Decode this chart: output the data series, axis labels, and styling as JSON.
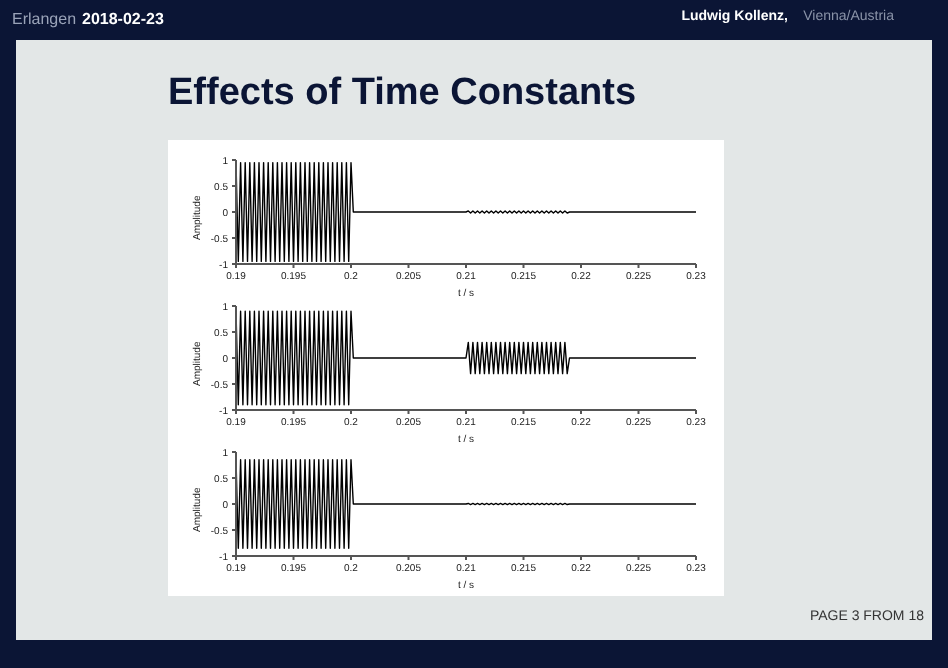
{
  "chart_data": [
    {
      "type": "line",
      "title": "Effects of Time Constants",
      "ylabel": "Amplitude",
      "xlabel": "t / s",
      "annotations": [
        "Erlangen",
        "2018-02-23",
        "Ludwig Kollenz,",
        "Vienna/Austria",
        "PAGE 3 FROM 18"
      ],
      "xlim": [
        0.19,
        0.23
      ],
      "xticks": [
        0.19,
        0.195,
        0.2,
        0.205,
        0.21,
        0.215,
        0.22,
        0.225,
        0.23
      ],
      "ylim": [
        -1,
        1
      ],
      "yticks": [
        -1,
        -0.5,
        0,
        0.5,
        1
      ],
      "series": [
        {
          "color": "#000000",
          "x": [
            0.19,
            0.1902,
            0.1904,
            0.1906,
            0.1908,
            0.191,
            0.1912,
            0.1914,
            0.1916,
            0.1918,
            0.192,
            0.1922,
            0.1924,
            0.1926,
            0.1928,
            0.193,
            0.1932,
            0.1934,
            0.1936,
            0.1938,
            0.194,
            0.1942,
            0.1944,
            0.1946,
            0.1948,
            0.195,
            0.1952,
            0.1954,
            0.1956,
            0.1958,
            0.196,
            0.1962,
            0.1964,
            0.1966,
            0.1968,
            0.197,
            0.1972,
            0.1974,
            0.1976,
            0.1978,
            0.198,
            0.1982,
            0.1984,
            0.1986,
            0.1988,
            0.199,
            0.1992,
            0.1994,
            0.1996,
            0.1998,
            0.2,
            0.2002,
            0.21,
            0.2102,
            0.2104,
            0.2106,
            0.2108,
            0.211,
            0.2112,
            0.2114,
            0.2116,
            0.2118,
            0.212,
            0.2122,
            0.2124,
            0.2126,
            0.2128,
            0.213,
            0.2132,
            0.2134,
            0.2136,
            0.2138,
            0.214,
            0.2142,
            0.2144,
            0.2146,
            0.2148,
            0.215,
            0.2152,
            0.2154,
            0.2156,
            0.2158,
            0.216,
            0.2162,
            0.2164,
            0.2166,
            0.2168,
            0.217,
            0.2172,
            0.2174,
            0.2176,
            0.2178,
            0.218,
            0.2182,
            0.2184,
            0.2186,
            0.2188,
            0.219,
            0.23
          ],
          "values": [
            0.95,
            -0.95,
            0.95,
            -0.95,
            0.95,
            -0.95,
            0.95,
            -0.95,
            0.95,
            -0.95,
            0.95,
            -0.95,
            0.95,
            -0.95,
            0.95,
            -0.95,
            0.95,
            -0.95,
            0.95,
            -0.95,
            0.95,
            -0.95,
            0.95,
            -0.95,
            0.95,
            -0.95,
            0.95,
            -0.95,
            0.95,
            -0.95,
            0.95,
            -0.95,
            0.95,
            -0.95,
            0.95,
            -0.95,
            0.95,
            -0.95,
            0.95,
            -0.95,
            0.95,
            -0.95,
            0.95,
            -0.95,
            0.95,
            -0.95,
            0.95,
            -0.95,
            0.95,
            -0.95,
            0.95,
            0,
            0,
            0.02,
            -0.02,
            0.02,
            -0.02,
            0.02,
            -0.02,
            0.02,
            -0.02,
            0.02,
            -0.02,
            0.02,
            -0.02,
            0.02,
            -0.02,
            0.02,
            -0.02,
            0.02,
            -0.02,
            0.02,
            -0.02,
            0.02,
            -0.02,
            0.02,
            -0.02,
            0.02,
            -0.02,
            0.02,
            -0.02,
            0.02,
            -0.02,
            0.02,
            -0.02,
            0.02,
            -0.02,
            0.02,
            -0.02,
            0.02,
            -0.02,
            0.02,
            -0.02,
            0.02,
            -0.02,
            0.02,
            -0.02,
            0,
            0
          ]
        }
      ]
    },
    {
      "type": "line",
      "ylabel": "Amplitude",
      "xlabel": "t / s",
      "xlim": [
        0.19,
        0.23
      ],
      "xticks": [
        0.19,
        0.195,
        0.2,
        0.205,
        0.21,
        0.215,
        0.22,
        0.225,
        0.23
      ],
      "ylim": [
        -1,
        1
      ],
      "yticks": [
        -1,
        -0.5,
        0,
        0.5,
        1
      ],
      "series": [
        {
          "color": "#000000",
          "x": [
            0.19,
            0.1902,
            0.1904,
            0.1906,
            0.1908,
            0.191,
            0.1912,
            0.1914,
            0.1916,
            0.1918,
            0.192,
            0.1922,
            0.1924,
            0.1926,
            0.1928,
            0.193,
            0.1932,
            0.1934,
            0.1936,
            0.1938,
            0.194,
            0.1942,
            0.1944,
            0.1946,
            0.1948,
            0.195,
            0.1952,
            0.1954,
            0.1956,
            0.1958,
            0.196,
            0.1962,
            0.1964,
            0.1966,
            0.1968,
            0.197,
            0.1972,
            0.1974,
            0.1976,
            0.1978,
            0.198,
            0.1982,
            0.1984,
            0.1986,
            0.1988,
            0.199,
            0.1992,
            0.1994,
            0.1996,
            0.1998,
            0.2,
            0.2002,
            0.21,
            0.2102,
            0.2104,
            0.2106,
            0.2108,
            0.211,
            0.2112,
            0.2114,
            0.2116,
            0.2118,
            0.212,
            0.2122,
            0.2124,
            0.2126,
            0.2128,
            0.213,
            0.2132,
            0.2134,
            0.2136,
            0.2138,
            0.214,
            0.2142,
            0.2144,
            0.2146,
            0.2148,
            0.215,
            0.2152,
            0.2154,
            0.2156,
            0.2158,
            0.216,
            0.2162,
            0.2164,
            0.2166,
            0.2168,
            0.217,
            0.2172,
            0.2174,
            0.2176,
            0.2178,
            0.218,
            0.2182,
            0.2184,
            0.2186,
            0.2188,
            0.219,
            0.23
          ],
          "values": [
            0.9,
            -0.9,
            0.9,
            -0.9,
            0.9,
            -0.9,
            0.9,
            -0.9,
            0.9,
            -0.9,
            0.9,
            -0.9,
            0.9,
            -0.9,
            0.9,
            -0.9,
            0.9,
            -0.9,
            0.9,
            -0.9,
            0.9,
            -0.9,
            0.9,
            -0.9,
            0.9,
            -0.9,
            0.9,
            -0.9,
            0.9,
            -0.9,
            0.9,
            -0.9,
            0.9,
            -0.9,
            0.9,
            -0.9,
            0.9,
            -0.9,
            0.9,
            -0.9,
            0.9,
            -0.9,
            0.9,
            -0.9,
            0.9,
            -0.9,
            0.9,
            -0.9,
            0.9,
            -0.9,
            0.9,
            0,
            0,
            0.3,
            -0.3,
            0.3,
            -0.3,
            0.3,
            -0.3,
            0.3,
            -0.3,
            0.3,
            -0.3,
            0.3,
            -0.3,
            0.3,
            -0.3,
            0.3,
            -0.3,
            0.3,
            -0.3,
            0.3,
            -0.3,
            0.3,
            -0.3,
            0.3,
            -0.3,
            0.3,
            -0.3,
            0.3,
            -0.3,
            0.3,
            -0.3,
            0.3,
            -0.3,
            0.3,
            -0.3,
            0.3,
            -0.3,
            0.3,
            -0.3,
            0.3,
            -0.3,
            0.3,
            -0.3,
            0.3,
            -0.3,
            0,
            0
          ]
        }
      ]
    },
    {
      "type": "line",
      "ylabel": "Amplitude",
      "xlabel": "t / s",
      "xlim": [
        0.19,
        0.23
      ],
      "xticks": [
        0.19,
        0.195,
        0.2,
        0.205,
        0.21,
        0.215,
        0.22,
        0.225,
        0.23
      ],
      "ylim": [
        -1,
        1
      ],
      "yticks": [
        -1,
        -0.5,
        0,
        0.5,
        1
      ],
      "series": [
        {
          "color": "#000000",
          "x": [
            0.19,
            0.1902,
            0.1904,
            0.1906,
            0.1908,
            0.191,
            0.1912,
            0.1914,
            0.1916,
            0.1918,
            0.192,
            0.1922,
            0.1924,
            0.1926,
            0.1928,
            0.193,
            0.1932,
            0.1934,
            0.1936,
            0.1938,
            0.194,
            0.1942,
            0.1944,
            0.1946,
            0.1948,
            0.195,
            0.1952,
            0.1954,
            0.1956,
            0.1958,
            0.196,
            0.1962,
            0.1964,
            0.1966,
            0.1968,
            0.197,
            0.1972,
            0.1974,
            0.1976,
            0.1978,
            0.198,
            0.1982,
            0.1984,
            0.1986,
            0.1988,
            0.199,
            0.1992,
            0.1994,
            0.1996,
            0.1998,
            0.2,
            0.2002,
            0.21,
            0.2102,
            0.2104,
            0.2106,
            0.2108,
            0.211,
            0.2112,
            0.2114,
            0.2116,
            0.2118,
            0.212,
            0.2122,
            0.2124,
            0.2126,
            0.2128,
            0.213,
            0.2132,
            0.2134,
            0.2136,
            0.2138,
            0.214,
            0.2142,
            0.2144,
            0.2146,
            0.2148,
            0.215,
            0.2152,
            0.2154,
            0.2156,
            0.2158,
            0.216,
            0.2162,
            0.2164,
            0.2166,
            0.2168,
            0.217,
            0.2172,
            0.2174,
            0.2176,
            0.2178,
            0.218,
            0.2182,
            0.2184,
            0.2186,
            0.2188,
            0.219,
            0.23
          ],
          "values": [
            0.85,
            -0.85,
            0.85,
            -0.85,
            0.85,
            -0.85,
            0.85,
            -0.85,
            0.85,
            -0.85,
            0.85,
            -0.85,
            0.85,
            -0.85,
            0.85,
            -0.85,
            0.85,
            -0.85,
            0.85,
            -0.85,
            0.85,
            -0.85,
            0.85,
            -0.85,
            0.85,
            -0.85,
            0.85,
            -0.85,
            0.85,
            -0.85,
            0.85,
            -0.85,
            0.85,
            -0.85,
            0.85,
            -0.85,
            0.85,
            -0.85,
            0.85,
            -0.85,
            0.85,
            -0.85,
            0.85,
            -0.85,
            0.85,
            -0.85,
            0.85,
            -0.85,
            0.85,
            -0.85,
            0.85,
            0,
            0,
            0.01,
            -0.01,
            0.01,
            -0.01,
            0.01,
            -0.01,
            0.01,
            -0.01,
            0.01,
            -0.01,
            0.01,
            -0.01,
            0.01,
            -0.01,
            0.01,
            -0.01,
            0.01,
            -0.01,
            0.01,
            -0.01,
            0.01,
            -0.01,
            0.01,
            -0.01,
            0.01,
            -0.01,
            0.01,
            -0.01,
            0.01,
            -0.01,
            0.01,
            -0.01,
            0.01,
            -0.01,
            0.01,
            -0.01,
            0.01,
            -0.01,
            0.01,
            -0.01,
            0.01,
            -0.01,
            0.01,
            -0.01,
            0,
            0
          ]
        }
      ]
    }
  ]
}
